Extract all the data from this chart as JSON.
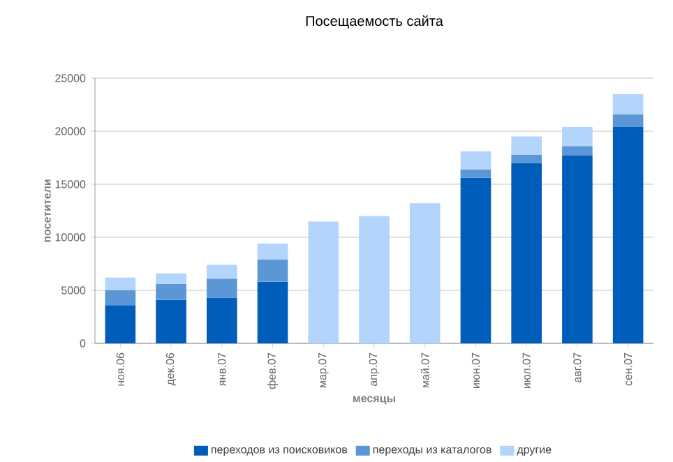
{
  "chart_data": {
    "type": "bar",
    "title": "Посещаемость сайта",
    "xlabel": "месяцы",
    "ylabel": "посетители",
    "categories": [
      "ноя.06",
      "дек.06",
      "янв.07",
      "фев.07",
      "мар.07",
      "апр.07",
      "май.07",
      "июн.07",
      "июл.07",
      "авг.07",
      "сен.07"
    ],
    "stacked": true,
    "series": [
      {
        "name": "переходов из поисковиков",
        "color": "#005dba",
        "values": [
          3600,
          4100,
          4300,
          5800,
          null,
          null,
          null,
          15600,
          17000,
          17700,
          20400
        ]
      },
      {
        "name": "переходы из каталогов",
        "color": "#5b96d6",
        "values": [
          1400,
          1500,
          1800,
          2100,
          null,
          null,
          null,
          800,
          800,
          900,
          1200
        ]
      },
      {
        "name": "другие",
        "color": "#b3d4fb",
        "values": [
          1200,
          1000,
          1300,
          1500,
          11500,
          12000,
          13200,
          1700,
          1700,
          1800,
          1900
        ]
      }
    ],
    "ylim": [
      0,
      25000
    ],
    "yticks": [
      0,
      5000,
      10000,
      15000,
      20000,
      25000
    ],
    "grid": "y",
    "legend": "bottom"
  }
}
